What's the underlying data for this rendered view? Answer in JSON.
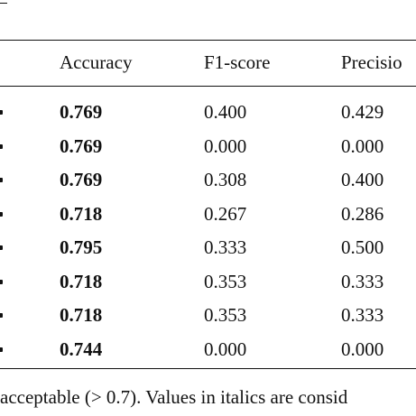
{
  "table": {
    "columns": [
      "Accuracy",
      "F1-score",
      "Precisio"
    ],
    "rows": [
      {
        "accuracy": "0.769",
        "f1": "0.400",
        "precision": "0.429"
      },
      {
        "accuracy": "0.769",
        "f1": "0.000",
        "precision": "0.000"
      },
      {
        "accuracy": "0.769",
        "f1": "0.308",
        "precision": "0.400"
      },
      {
        "accuracy": "0.718",
        "f1": "0.267",
        "precision": "0.286"
      },
      {
        "accuracy": "0.795",
        "f1": "0.333",
        "precision": "0.500"
      },
      {
        "accuracy": "0.718",
        "f1": "0.353",
        "precision": "0.333"
      },
      {
        "accuracy": "0.718",
        "f1": "0.353",
        "precision": "0.333"
      },
      {
        "accuracy": "0.744",
        "f1": "0.000",
        "precision": "0.000"
      }
    ]
  },
  "caption": "acceptable (> 0.7). Values in italics are consid"
}
